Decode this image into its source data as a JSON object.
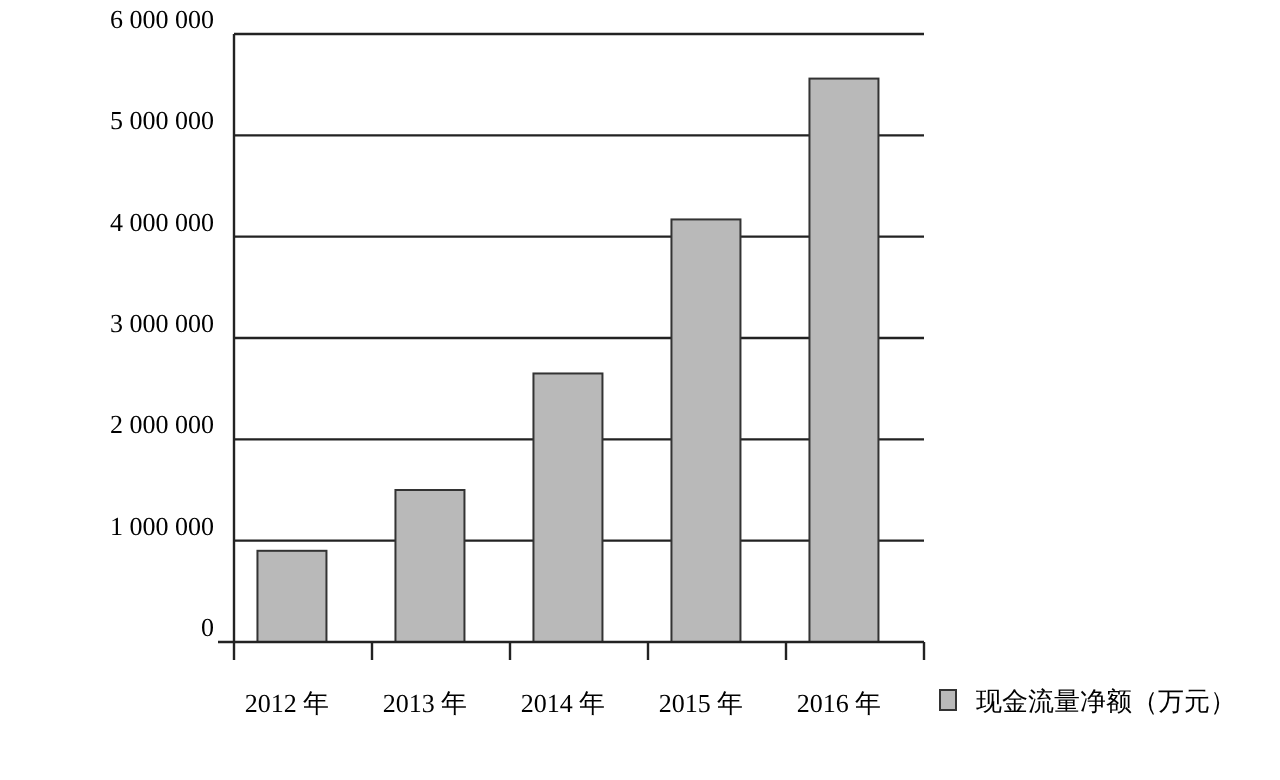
{
  "chart_data": {
    "type": "bar",
    "categories": [
      "2012 年",
      "2013 年",
      "2014 年",
      "2015 年",
      "2016 年"
    ],
    "series": [
      {
        "name": "现金流量净额（万元）",
        "color": "#b9b9b9",
        "values": [
          900000,
          1500000,
          2650000,
          4170000,
          5560000
        ]
      }
    ],
    "ylim": [
      0,
      6000000
    ],
    "yticks": [
      {
        "value": 0,
        "label": "0"
      },
      {
        "value": 1000000,
        "label": "1 000 000"
      },
      {
        "value": 2000000,
        "label": "2 000 000"
      },
      {
        "value": 3000000,
        "label": "3 000 000"
      },
      {
        "value": 4000000,
        "label": "4 000 000"
      },
      {
        "value": 5000000,
        "label": "5 000 000"
      },
      {
        "value": 6000000,
        "label": "6 000 000"
      }
    ],
    "grid": "y",
    "legend": "bottom right"
  }
}
